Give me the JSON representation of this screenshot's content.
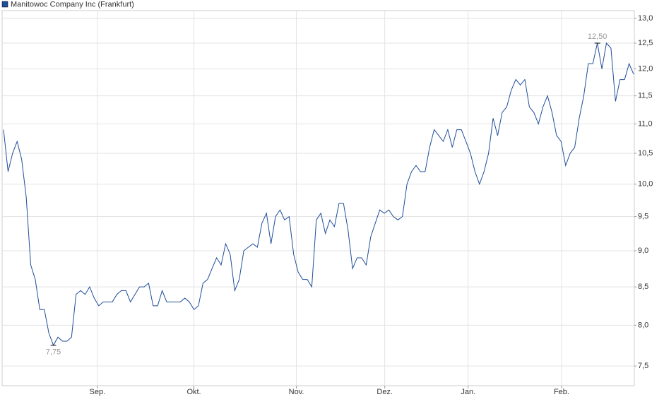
{
  "chart_data": {
    "type": "line",
    "legend": "top-left",
    "grid": true,
    "log_scale": true,
    "series": [
      {
        "name": "Manitowoc Company Inc (Frankfurt)",
        "color": "#1f4e9a",
        "values": [
          10.9,
          10.2,
          10.5,
          10.7,
          10.4,
          9.8,
          8.8,
          8.6,
          8.2,
          8.2,
          7.9,
          7.75,
          7.85,
          7.8,
          7.8,
          7.85,
          8.4,
          8.45,
          8.4,
          8.5,
          8.35,
          8.25,
          8.3,
          8.3,
          8.3,
          8.4,
          8.45,
          8.45,
          8.3,
          8.4,
          8.5,
          8.5,
          8.55,
          8.25,
          8.25,
          8.45,
          8.3,
          8.3,
          8.3,
          8.3,
          8.35,
          8.3,
          8.2,
          8.25,
          8.55,
          8.6,
          8.75,
          8.9,
          8.8,
          9.1,
          8.95,
          8.45,
          8.6,
          9.0,
          9.05,
          9.1,
          9.05,
          9.4,
          9.55,
          9.1,
          9.5,
          9.6,
          9.45,
          9.5,
          8.95,
          8.7,
          8.6,
          8.6,
          8.5,
          9.45,
          9.55,
          9.25,
          9.45,
          9.35,
          9.7,
          9.7,
          9.3,
          8.75,
          8.9,
          8.9,
          8.8,
          9.2,
          9.4,
          9.6,
          9.55,
          9.6,
          9.5,
          9.45,
          9.5,
          10.0,
          10.2,
          10.3,
          10.2,
          10.2,
          10.6,
          10.9,
          10.8,
          10.7,
          10.9,
          10.6,
          10.9,
          10.9,
          10.7,
          10.5,
          10.2,
          10.0,
          10.2,
          10.5,
          11.1,
          10.8,
          11.2,
          11.3,
          11.6,
          11.8,
          11.7,
          11.8,
          11.3,
          11.2,
          11.0,
          11.3,
          11.5,
          11.2,
          10.8,
          10.7,
          10.3,
          10.5,
          10.6,
          11.1,
          11.5,
          12.1,
          12.1,
          12.5,
          12.0,
          12.5,
          12.4,
          11.4,
          11.8,
          11.8,
          12.1,
          11.9
        ]
      }
    ],
    "xlim": [
      0,
      139
    ],
    "xticks": [
      {
        "value": 20.7,
        "label": "Sep."
      },
      {
        "value": 42,
        "label": "Okt."
      },
      {
        "value": 64.6,
        "label": "Nov."
      },
      {
        "value": 84.1,
        "label": "Dez."
      },
      {
        "value": 102.5,
        "label": "Jan."
      },
      {
        "value": 123.1,
        "label": "Feb."
      }
    ],
    "ylim": [
      7.27,
      13.16
    ],
    "yticks": [
      {
        "value": 7.5,
        "label": "7,5"
      },
      {
        "value": 8,
        "label": "8,0"
      },
      {
        "value": 8.5,
        "label": "8,5"
      },
      {
        "value": 9,
        "label": "9,0"
      },
      {
        "value": 9.5,
        "label": "9,5"
      },
      {
        "value": 10,
        "label": "10,0"
      },
      {
        "value": 10.5,
        "label": "10,5"
      },
      {
        "value": 11,
        "label": "11,0"
      },
      {
        "value": 11.5,
        "label": "11,5"
      },
      {
        "value": 12,
        "label": "12,0"
      },
      {
        "value": 12.5,
        "label": "12,5"
      },
      {
        "value": 13,
        "label": "13,0"
      }
    ],
    "annotations": [
      {
        "value": 12.5,
        "label": "12,50"
      },
      {
        "value": 7.75,
        "label": "7,75"
      }
    ]
  }
}
